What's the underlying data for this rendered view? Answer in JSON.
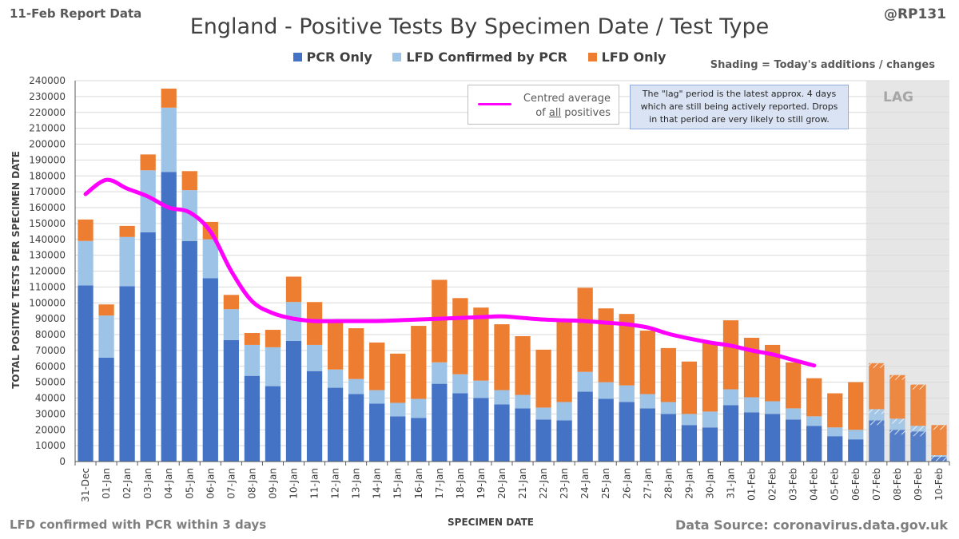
{
  "header": {
    "report_label": "11-Feb Report Data",
    "title": "England - Positive Tests By Specimen Date / Test Type",
    "handle": "@RP131",
    "shading_note": "Shading = Today's additions / changes"
  },
  "footer": {
    "note": "LFD confirmed with PCR within 3 days",
    "source": "Data Source: coronavirus.data.gov.uk"
  },
  "annotations": {
    "average_label_line1": "Centred average",
    "average_label_line2_prefix": "of ",
    "average_label_line2_emph": "all",
    "average_label_line2_suffix": " positives",
    "lag_note_line1": "The \"lag\" period is the latest approx. 4 days",
    "lag_note_line2": "which are still being actively reported.  Drops",
    "lag_note_line3": "in that period are very likely to still grow.",
    "lag_label": "LAG"
  },
  "colors": {
    "pcr": "#4472c4",
    "lfd_confirmed": "#9dc3e6",
    "lfd_only": "#ed7d31",
    "average": "#ff00ff",
    "lag_shading": "#e7e6e6"
  },
  "chart_data": {
    "type": "bar",
    "stacked": true,
    "xlabel": "SPECIMEN DATE",
    "ylabel": "TOTAL POSITIVE TESTS PER SPECIMEN DATE",
    "ylim": [
      0,
      240000
    ],
    "ytick_step": 10000,
    "categories": [
      "31-Dec",
      "01-Jan",
      "02-Jan",
      "03-Jan",
      "04-Jan",
      "05-Jan",
      "06-Jan",
      "07-Jan",
      "08-Jan",
      "09-Jan",
      "10-Jan",
      "11-Jan",
      "12-Jan",
      "13-Jan",
      "14-Jan",
      "15-Jan",
      "16-Jan",
      "17-Jan",
      "18-Jan",
      "19-Jan",
      "20-Jan",
      "21-Jan",
      "22-Jan",
      "23-Jan",
      "24-Jan",
      "25-Jan",
      "26-Jan",
      "27-Jan",
      "28-Jan",
      "29-Jan",
      "30-Jan",
      "31-Jan",
      "01-Feb",
      "02-Feb",
      "03-Feb",
      "04-Feb",
      "05-Feb",
      "06-Feb",
      "07-Feb",
      "08-Feb",
      "09-Feb",
      "10-Feb"
    ],
    "series": [
      {
        "name": "PCR Only",
        "values": [
          111000,
          65500,
          110500,
          144500,
          182500,
          139000,
          115500,
          76500,
          54000,
          47500,
          76000,
          57000,
          46500,
          42500,
          36500,
          28500,
          27500,
          49000,
          43000,
          40000,
          36000,
          33500,
          26500,
          26000,
          44000,
          39500,
          37500,
          33500,
          30000,
          23000,
          21500,
          35500,
          31000,
          30000,
          26500,
          22500,
          16000,
          14000,
          26000,
          20000,
          19000,
          3000
        ]
      },
      {
        "name": "LFD Confirmed by PCR",
        "values": [
          28000,
          26500,
          31000,
          39000,
          40500,
          32000,
          24500,
          19500,
          19500,
          24500,
          24500,
          16500,
          11500,
          9500,
          8500,
          8500,
          12000,
          13500,
          12000,
          11000,
          9000,
          8500,
          7500,
          11500,
          12500,
          10500,
          10500,
          9000,
          7500,
          7000,
          10000,
          10000,
          9500,
          8000,
          7000,
          6000,
          5500,
          6000,
          7000,
          7000,
          3500,
          1000
        ]
      },
      {
        "name": "LFD Only",
        "values": [
          13500,
          7000,
          7000,
          10000,
          12000,
          12000,
          11000,
          9000,
          7500,
          11000,
          16000,
          27000,
          31500,
          32000,
          30000,
          31000,
          46000,
          52000,
          48000,
          46000,
          41500,
          37000,
          36500,
          52000,
          53000,
          46500,
          45000,
          40000,
          34000,
          33000,
          43000,
          43500,
          37500,
          35500,
          29000,
          24000,
          21500,
          30000,
          29000,
          27500,
          26000,
          19000
        ]
      }
    ],
    "centred_average": {
      "name": "Centred average of all positives",
      "categories": [
        "31-Dec",
        "01-Jan",
        "02-Jan",
        "03-Jan",
        "04-Jan",
        "05-Jan",
        "06-Jan",
        "07-Jan",
        "08-Jan",
        "09-Jan",
        "10-Jan",
        "11-Jan",
        "12-Jan",
        "13-Jan",
        "14-Jan",
        "15-Jan",
        "16-Jan",
        "17-Jan",
        "18-Jan",
        "19-Jan",
        "20-Jan",
        "21-Jan",
        "22-Jan",
        "23-Jan",
        "24-Jan",
        "25-Jan",
        "26-Jan",
        "27-Jan",
        "28-Jan",
        "29-Jan",
        "30-Jan",
        "31-Jan",
        "01-Feb",
        "02-Feb",
        "03-Feb",
        "04-Feb"
      ],
      "values": [
        168500,
        177500,
        172000,
        167000,
        160000,
        157000,
        145000,
        120000,
        101000,
        93500,
        90000,
        88500,
        88500,
        88500,
        88500,
        89000,
        89500,
        90000,
        90500,
        91000,
        91500,
        90500,
        89500,
        89000,
        88500,
        87500,
        86500,
        84500,
        80500,
        77500,
        75000,
        73000,
        70000,
        67500,
        64000,
        60500
      ]
    },
    "lag_period_start": "07-Feb",
    "today_changes_hatched": [
      "07-Feb",
      "08-Feb",
      "09-Feb",
      "10-Feb"
    ]
  }
}
